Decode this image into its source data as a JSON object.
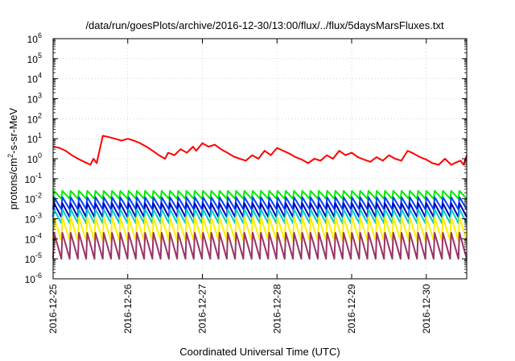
{
  "chart_data": {
    "type": "line",
    "title": "/data/run/goesPlots/archive/2016-12-30/13:00/flux/../flux/5daysMarsFluxes.txt",
    "xlabel": "Coordinated Universal Time (UTC)",
    "ylabel": {
      "prefix": "protons/cm",
      "exponent": "2",
      "suffix": "-s-sr-MeV"
    },
    "yscale": "log",
    "ylim": [
      1e-06,
      1000000.0
    ],
    "y_ticks": [
      {
        "base": "10",
        "exp": "-6",
        "value": 1e-06
      },
      {
        "base": "10",
        "exp": "-5",
        "value": 1e-05
      },
      {
        "base": "10",
        "exp": "-4",
        "value": 0.0001
      },
      {
        "base": "10",
        "exp": "-3",
        "value": 0.001
      },
      {
        "base": "10",
        "exp": "-2",
        "value": 0.01
      },
      {
        "base": "10",
        "exp": "-1",
        "value": 0.1
      },
      {
        "base": "10",
        "exp": "0",
        "value": 1
      },
      {
        "base": "10",
        "exp": "1",
        "value": 10
      },
      {
        "base": "10",
        "exp": "2",
        "value": 100
      },
      {
        "base": "10",
        "exp": "3",
        "value": 1000
      },
      {
        "base": "10",
        "exp": "4",
        "value": 10000
      },
      {
        "base": "10",
        "exp": "5",
        "value": 100000
      },
      {
        "base": "10",
        "exp": "6",
        "value": 1000000
      }
    ],
    "x_ticks": [
      "2016-12-25",
      "2016-12-26",
      "2016-12-27",
      "2016-12-28",
      "2016-12-29",
      "2016-12-30"
    ],
    "xlim": [
      "2016-12-25T00:00",
      "2016-12-30T13:00"
    ],
    "grid": true,
    "legend": "none",
    "series": [
      {
        "color": "#ff0000",
        "x": [
          "2016-12-25T00:00",
          "2016-12-25T02:00",
          "2016-12-25T04:00",
          "2016-12-25T06:00",
          "2016-12-25T08:00",
          "2016-12-25T10:00",
          "2016-12-25T12:00",
          "2016-12-25T13:00",
          "2016-12-25T14:00",
          "2016-12-25T16:00",
          "2016-12-25T18:00",
          "2016-12-25T20:00",
          "2016-12-25T22:00",
          "2016-12-26T00:00",
          "2016-12-26T02:00",
          "2016-12-26T04:00",
          "2016-12-26T06:00",
          "2016-12-26T08:00",
          "2016-12-26T10:00",
          "2016-12-26T12:00",
          "2016-12-26T13:00",
          "2016-12-26T15:00",
          "2016-12-26T17:00",
          "2016-12-26T19:00",
          "2016-12-26T21:00",
          "2016-12-26T22:00",
          "2016-12-27T00:00",
          "2016-12-27T02:00",
          "2016-12-27T04:00",
          "2016-12-27T06:00",
          "2016-12-27T08:00",
          "2016-12-27T10:00",
          "2016-12-27T12:00",
          "2016-12-27T14:00",
          "2016-12-27T16:00",
          "2016-12-27T18:00",
          "2016-12-27T20:00",
          "2016-12-27T22:00",
          "2016-12-28T00:00",
          "2016-12-28T02:00",
          "2016-12-28T04:00",
          "2016-12-28T06:00",
          "2016-12-28T08:00",
          "2016-12-28T10:00",
          "2016-12-28T12:00",
          "2016-12-28T14:00",
          "2016-12-28T16:00",
          "2016-12-28T18:00",
          "2016-12-28T20:00",
          "2016-12-28T22:00",
          "2016-12-29T00:00",
          "2016-12-29T02:00",
          "2016-12-29T04:00",
          "2016-12-29T06:00",
          "2016-12-29T08:00",
          "2016-12-29T10:00",
          "2016-12-29T12:00",
          "2016-12-29T14:00",
          "2016-12-29T16:00",
          "2016-12-29T18:00",
          "2016-12-29T20:00",
          "2016-12-29T22:00",
          "2016-12-30T00:00",
          "2016-12-30T02:00",
          "2016-12-30T04:00",
          "2016-12-30T06:00",
          "2016-12-30T08:00",
          "2016-12-30T10:00",
          "2016-12-30T11:00",
          "2016-12-30T12:00",
          "2016-12-30T13:00"
        ],
        "y": [
          4,
          3.5,
          2.5,
          1.5,
          1,
          0.7,
          0.5,
          1,
          0.6,
          14,
          12,
          10,
          8,
          10,
          8,
          6,
          4,
          2.5,
          1.5,
          1,
          2,
          1.5,
          3,
          2,
          4,
          2.5,
          6,
          4,
          5,
          3,
          2,
          1.3,
          1,
          0.8,
          1.5,
          1,
          2.5,
          1.5,
          3.5,
          2.5,
          1.8,
          1.2,
          0.9,
          0.6,
          1,
          0.8,
          1.5,
          1,
          2.5,
          1.5,
          2,
          1.2,
          0.9,
          0.7,
          1.2,
          0.8,
          1.5,
          1,
          0.8,
          2.5,
          1.8,
          1.2,
          0.9,
          0.6,
          0.5,
          1,
          0.5,
          0.7,
          0.8,
          0.5,
          1.5
        ]
      },
      {
        "color": "#00ee00",
        "peak": 0.025,
        "trough": 0.01,
        "cycles": 50
      },
      {
        "color": "#0044ff",
        "peak": 0.012,
        "trough": 0.003,
        "cycles": 50
      },
      {
        "color": "#0000bb",
        "peak": 0.006,
        "trough": 0.0012,
        "cycles": 50
      },
      {
        "color": "#00cccc",
        "peak": 0.003,
        "trough": 0.0006,
        "cycles": 50
      },
      {
        "color": "#ffee00",
        "peak": 0.0012,
        "trough": 8e-05,
        "cycles": 50
      },
      {
        "color": "#993366",
        "peak": 0.0002,
        "trough": 1e-05,
        "cycles": 50
      }
    ]
  }
}
